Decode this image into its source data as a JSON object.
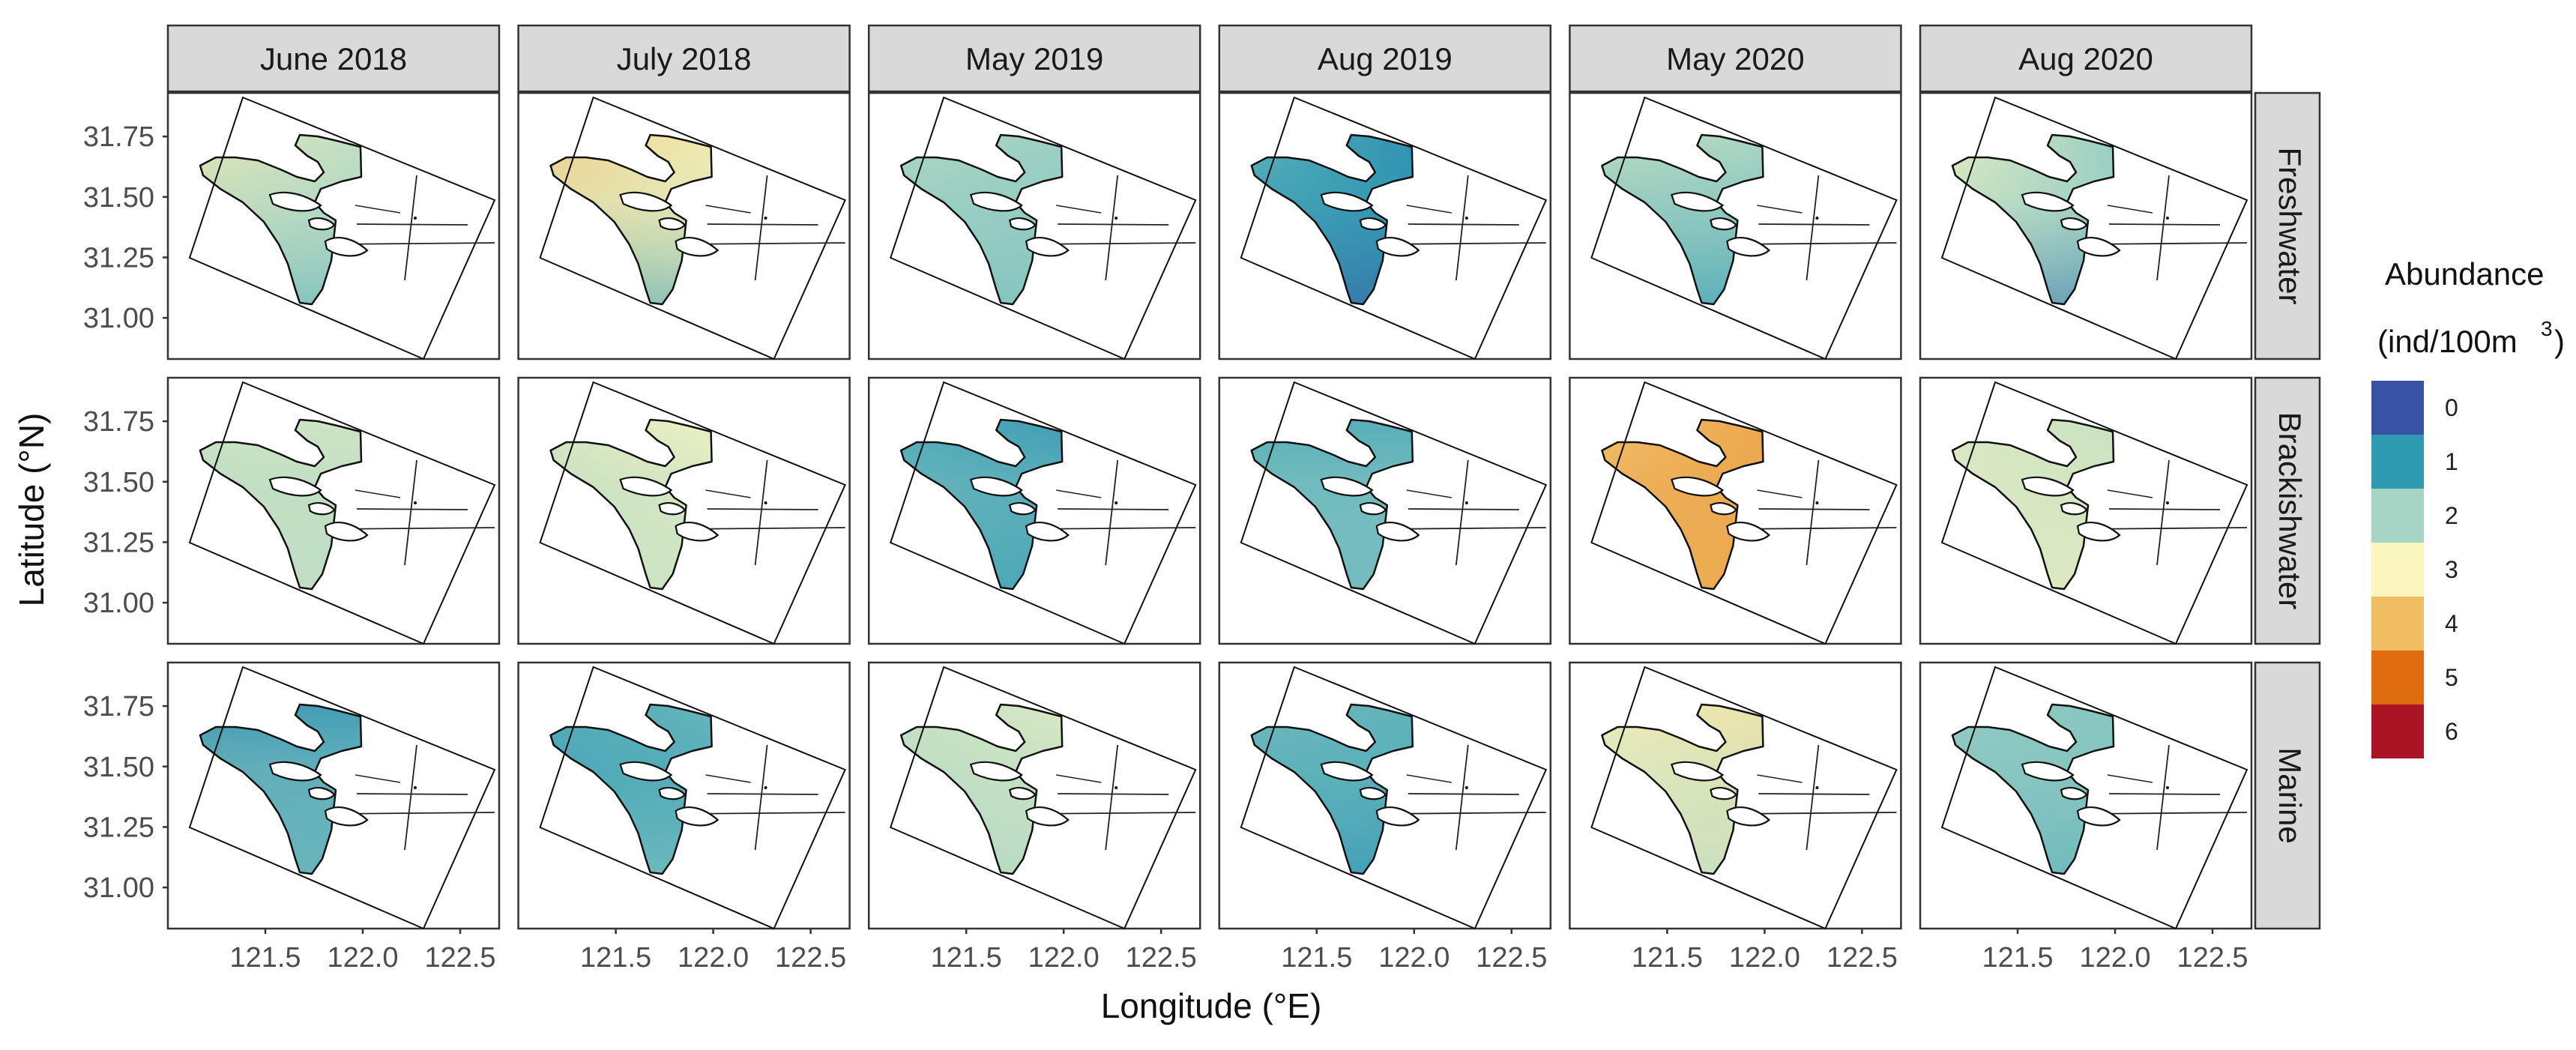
{
  "chart_data": {
    "type": "heatmap",
    "subtype": "faceted interpolated abundance maps",
    "xlabel": "Longitude (°E)",
    "ylabel": "Latitude (°N)",
    "x_ticks": [
      "121.5",
      "122.0",
      "122.5"
    ],
    "x_tick_values": [
      121.5,
      122.0,
      122.5
    ],
    "xlim": [
      121.0,
      122.7
    ],
    "y_ticks": [
      "31.75",
      "31.50",
      "31.25",
      "31.00"
    ],
    "y_tick_values": [
      31.75,
      31.5,
      31.25,
      31.0
    ],
    "ylim": [
      30.83,
      31.93
    ],
    "columns": [
      "June 2018",
      "July 2018",
      "May 2019",
      "Aug 2019",
      "May 2020",
      "Aug 2020"
    ],
    "rows": [
      "Freshwater",
      "Brackishwater",
      "Marine"
    ],
    "legend": {
      "title": "Abundance",
      "units_prefix": "(ind/100m",
      "units_power": "3",
      "units_suffix": ")",
      "levels": [
        {
          "label": "0",
          "color": "#3953a4"
        },
        {
          "label": "1",
          "color": "#2f9bb3"
        },
        {
          "label": "2",
          "color": "#a6d4c5"
        },
        {
          "label": "3",
          "color": "#fbf6c0"
        },
        {
          "label": "4",
          "color": "#f0bd63"
        },
        {
          "label": "5",
          "color": "#e06c12"
        },
        {
          "label": "6",
          "color": "#ab1424"
        }
      ]
    },
    "panels": [
      [
        {
          "w": 3.2,
          "e": 1.6,
          "s": 2.0,
          "se": 1.4
        },
        {
          "w": 3.8,
          "e": 2.6,
          "s": 2.6,
          "se": 1.2
        },
        {
          "w": 2.2,
          "e": 1.7,
          "s": 1.8,
          "se": 1.6
        },
        {
          "w": 1.5,
          "e": 0.2,
          "s": 1.0,
          "se": 0.2
        },
        {
          "w": 2.5,
          "e": 2.0,
          "s": 1.6,
          "se": 1.0
        },
        {
          "w": 3.0,
          "e": 0.7,
          "s": 2.0,
          "se": 0.5
        }
      ],
      [
        {
          "w": 2.5,
          "e": 2.6,
          "s": 2.2,
          "se": 2.3
        },
        {
          "w": 2.6,
          "e": 3.4,
          "s": 2.3,
          "se": 2.4
        },
        {
          "w": 1.2,
          "e": 0.6,
          "s": 1.6,
          "se": 1.1
        },
        {
          "w": 1.2,
          "e": 1.2,
          "s": 1.8,
          "se": 1.6
        },
        {
          "w": 3.8,
          "e": 4.7,
          "s": 4.3,
          "se": 4.2
        },
        {
          "w": 2.6,
          "e": 2.1,
          "s": 2.6,
          "se": 2.7
        }
      ],
      [
        {
          "w": 0.8,
          "e": 1.0,
          "s": 1.7,
          "se": 1.5
        },
        {
          "w": 1.3,
          "e": 1.8,
          "s": 1.2,
          "se": 1.7
        },
        {
          "w": 2.4,
          "e": 3.0,
          "s": 2.2,
          "se": 2.1
        },
        {
          "w": 1.6,
          "e": 1.3,
          "s": 1.3,
          "se": 0.9
        },
        {
          "w": 3.1,
          "e": 3.6,
          "s": 2.4,
          "se": 2.3
        },
        {
          "w": 1.9,
          "e": 1.6,
          "s": 1.7,
          "se": 1.4
        }
      ]
    ]
  }
}
